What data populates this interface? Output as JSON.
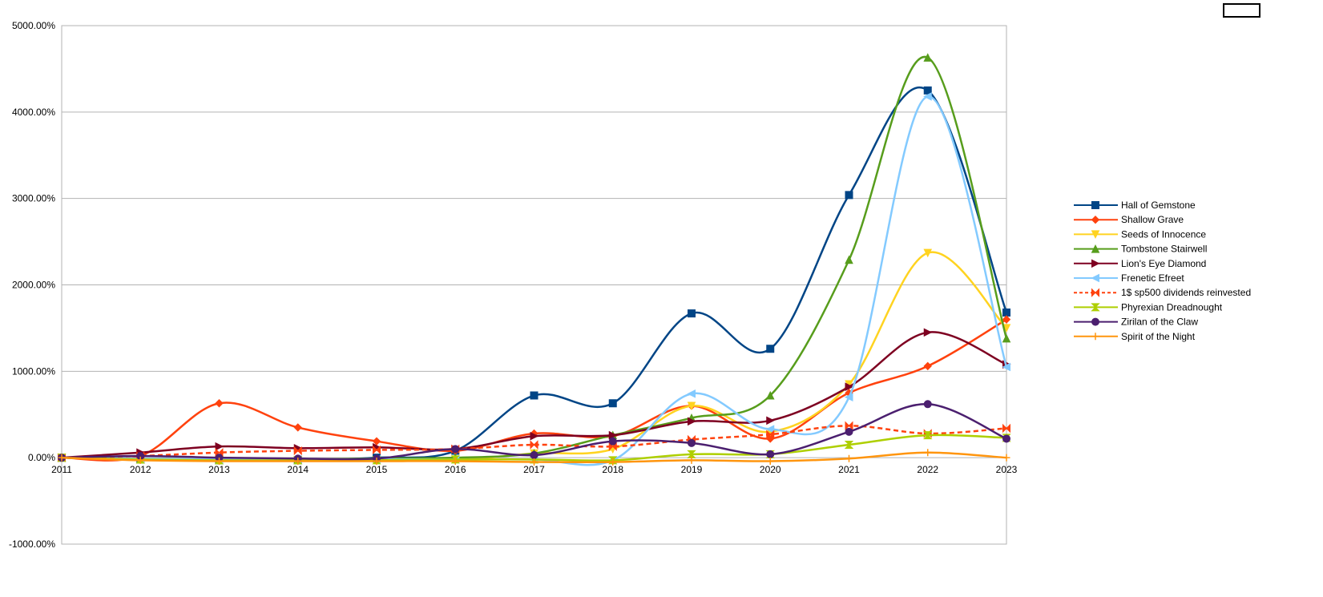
{
  "chart_data": {
    "type": "line",
    "smooth": true,
    "grid": true,
    "legend": "right",
    "categories": [
      "2011",
      "2012",
      "2013",
      "2014",
      "2015",
      "2016",
      "2017",
      "2018",
      "2019",
      "2020",
      "2021",
      "2022",
      "2023"
    ],
    "ylim": [
      -1000,
      5000
    ],
    "yticks": [
      {
        "value": -1000,
        "label": "-1000.00%"
      },
      {
        "value": 0,
        "label": "0.00%"
      },
      {
        "value": 1000,
        "label": "1000.00%"
      },
      {
        "value": 2000,
        "label": "2000.00%"
      },
      {
        "value": 3000,
        "label": "3000.00%"
      },
      {
        "value": 4000,
        "label": "4000.00%"
      },
      {
        "value": 5000,
        "label": "5000.00%"
      }
    ],
    "series": [
      {
        "name": "Hall of Gemstone",
        "color": "#004586",
        "marker": "square",
        "values": [
          0,
          -20,
          -30,
          -30,
          0,
          80,
          720,
          630,
          1670,
          1260,
          3040,
          4250,
          1680
        ]
      },
      {
        "name": "Shallow Grave",
        "color": "#ff420e",
        "marker": "diamond",
        "values": [
          0,
          20,
          630,
          350,
          190,
          80,
          280,
          250,
          600,
          220,
          750,
          1060,
          1600
        ]
      },
      {
        "name": "Seeds of Innocence",
        "color": "#ffd320",
        "marker": "tri-down",
        "values": [
          0,
          -20,
          -30,
          -30,
          -30,
          -30,
          50,
          100,
          600,
          300,
          850,
          2370,
          1500
        ]
      },
      {
        "name": "Tombstone Stairwell",
        "color": "#579d1c",
        "marker": "tri-up",
        "values": [
          0,
          -20,
          -20,
          -20,
          -10,
          0,
          50,
          260,
          460,
          720,
          2290,
          4630,
          1380
        ]
      },
      {
        "name": "Lion's Eye Diamond",
        "color": "#7e0021",
        "marker": "tri-right",
        "values": [
          0,
          60,
          130,
          110,
          120,
          100,
          250,
          260,
          420,
          430,
          820,
          1450,
          1080
        ]
      },
      {
        "name": "Frenetic Efreet",
        "color": "#83caff",
        "marker": "tri-left",
        "values": [
          0,
          -10,
          -20,
          -20,
          -20,
          -20,
          -20,
          -30,
          740,
          330,
          700,
          4180,
          1050
        ]
      },
      {
        "name": "1$ sp500 dividends reinvested",
        "color": "#ff420e",
        "marker": "bowtie",
        "dash": true,
        "values": [
          0,
          20,
          60,
          80,
          90,
          100,
          150,
          130,
          210,
          270,
          370,
          280,
          340
        ]
      },
      {
        "name": "Phyrexian Dreadnought",
        "color": "#aecf00",
        "marker": "hourglass",
        "values": [
          0,
          -20,
          -30,
          -30,
          -30,
          -20,
          -20,
          -30,
          40,
          40,
          150,
          260,
          230
        ]
      },
      {
        "name": "Zirilan of the Claw",
        "color": "#4b1f6f",
        "marker": "circle",
        "values": [
          0,
          20,
          0,
          -10,
          -10,
          100,
          30,
          190,
          170,
          40,
          300,
          620,
          220
        ]
      },
      {
        "name": "Spirit of the Night",
        "color": "#ff950e",
        "marker": "plus",
        "values": [
          0,
          -30,
          -40,
          -40,
          -40,
          -40,
          -50,
          -50,
          -30,
          -40,
          -10,
          60,
          0
        ]
      }
    ]
  }
}
